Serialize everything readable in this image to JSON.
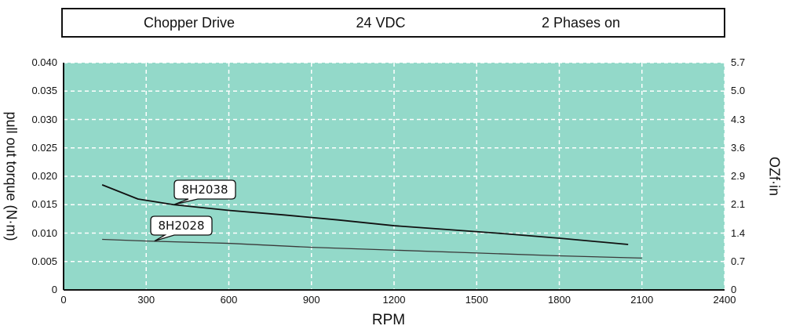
{
  "header": {
    "drive": "Chopper Drive",
    "voltage": "24 VDC",
    "phases": "2 Phases on"
  },
  "colors": {
    "plot_bg": "#93d9c9",
    "grid": "#ffffff",
    "curve_8H2038": "#111111",
    "curve_8H2028": "#3a3a3a"
  },
  "chart_data": {
    "type": "line",
    "title": "Chopper Drive | 24 VDC | 2 Phases on",
    "xlabel": "RPM",
    "ylabel": "pull out torque (N·m)",
    "ylabel_right": "OZf·in",
    "xlim": [
      0,
      2400
    ],
    "ylim": [
      0,
      0.04
    ],
    "grid": true,
    "x_ticks": [
      "0",
      "300",
      "600",
      "900",
      "1200",
      "1500",
      "1800",
      "2100",
      "2400"
    ],
    "y_ticks": [
      "0",
      "0.005",
      "0.010",
      "0.015",
      "0.020",
      "0.025",
      "0.030",
      "0.035",
      "0.040"
    ],
    "y_ticks_right": [
      "0",
      "0.7",
      "1.4",
      "2.1",
      "2.9",
      "3.6",
      "4.3",
      "5.0",
      "5.7"
    ],
    "series": [
      {
        "name": "8H2038",
        "x": [
          140,
          270,
          400,
          600,
          800,
          1000,
          1200,
          1400,
          1600,
          1800,
          2050
        ],
        "y": [
          0.0185,
          0.016,
          0.015,
          0.014,
          0.0132,
          0.0123,
          0.0113,
          0.0106,
          0.0099,
          0.0091,
          0.008
        ]
      },
      {
        "name": "8H2028",
        "x": [
          140,
          300,
          600,
          900,
          1200,
          1500,
          1800,
          2100
        ],
        "y": [
          0.0089,
          0.0086,
          0.0082,
          0.0075,
          0.007,
          0.0065,
          0.006,
          0.0056
        ]
      }
    ],
    "annotations": [
      {
        "text": "8H2038",
        "x": 400,
        "y": 0.015
      },
      {
        "text": "8H2028",
        "x": 330,
        "y": 0.0086
      }
    ]
  }
}
